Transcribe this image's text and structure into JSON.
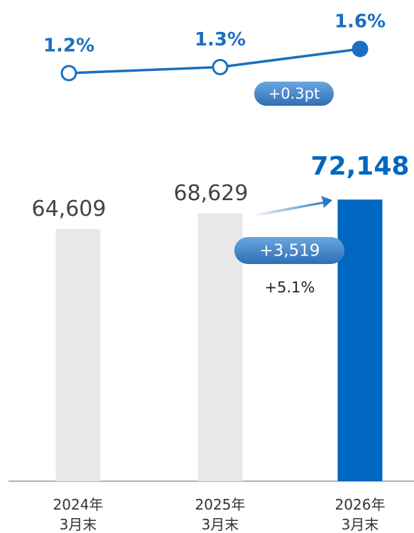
{
  "chart_data": {
    "type": "bar",
    "categories": [
      "2024年\n3月末",
      "2025年\n3月末",
      "2026年\n3月末"
    ],
    "values": [
      64609,
      68629,
      72148
    ],
    "value_labels": [
      "64,609",
      "68,629",
      "72,148"
    ],
    "colors": [
      "#e8e8e8",
      "#e8e8e8",
      "#0068c0"
    ],
    "ylim": [
      0,
      100000
    ],
    "series": [
      {
        "type": "line",
        "axis": "y2",
        "color": "#1a6fc0",
        "values": [
          1.2,
          1.3,
          1.6
        ],
        "value_labels": [
          "1.2%",
          "1.3%",
          "1.6%"
        ]
      }
    ],
    "y2lim": [
      0,
      2
    ],
    "annotations": [
      "+0.3pt",
      "+3,519",
      "+5.1%"
    ]
  }
}
